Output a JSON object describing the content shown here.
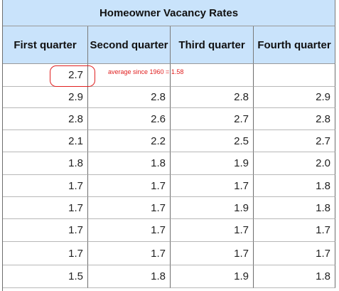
{
  "table": {
    "title": "Homeowner Vacancy Rates",
    "columns": [
      "First quarter",
      "Second quarter",
      "Third quarter",
      "Fourth quarter"
    ],
    "first_row": {
      "value": "2.7",
      "note": "average since 1960 = 1.58"
    },
    "rows": [
      [
        "2.9",
        "2.8",
        "2.8",
        "2.9"
      ],
      [
        "2.8",
        "2.6",
        "2.7",
        "2.8"
      ],
      [
        "2.1",
        "2.2",
        "2.5",
        "2.7"
      ],
      [
        "1.8",
        "1.8",
        "1.9",
        "2.0"
      ],
      [
        "1.7",
        "1.7",
        "1.7",
        "1.8"
      ],
      [
        "1.7",
        "1.7",
        "1.9",
        "1.8"
      ],
      [
        "1.7",
        "1.7",
        "1.7",
        "1.7"
      ],
      [
        "1.7",
        "1.7",
        "1.7",
        "1.7"
      ],
      [
        "1.5",
        "1.8",
        "1.9",
        "1.8"
      ]
    ]
  }
}
